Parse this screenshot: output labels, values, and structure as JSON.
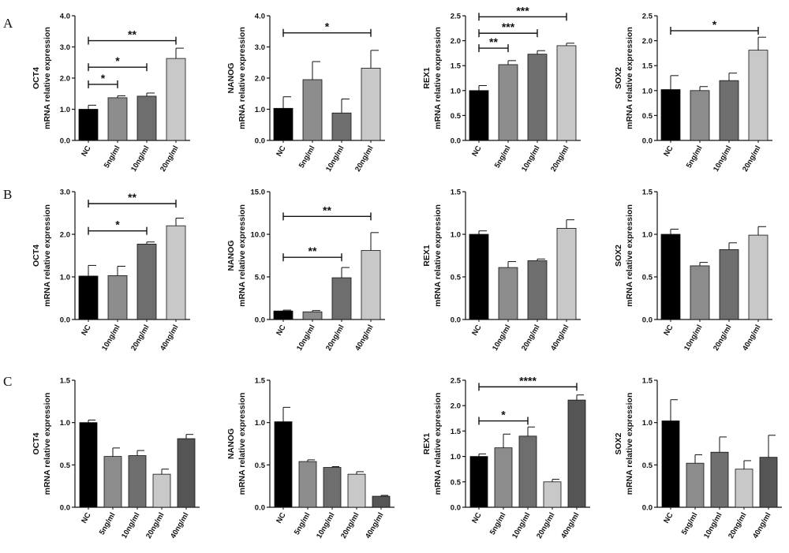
{
  "rows": [
    "A",
    "B",
    "C"
  ],
  "chart_data": [
    {
      "type": "bar",
      "row": "A",
      "title": "",
      "ylabel": [
        "OCT4",
        "mRNA relative expression"
      ],
      "ylim": [
        0,
        4
      ],
      "yticks": [
        "0.0",
        "1.0",
        "2.0",
        "3.0",
        "4.0"
      ],
      "categories": [
        "NC",
        "5ng/ml",
        "10ng/ml",
        "20ng/ml"
      ],
      "values": [
        1.0,
        1.37,
        1.42,
        2.63
      ],
      "errors": [
        0.13,
        0.06,
        0.1,
        0.33
      ],
      "colors": [
        "#000000",
        "#8c8c8c",
        "#6e6e6e",
        "#c8c8c8"
      ],
      "significance": [
        {
          "from": 0,
          "to": 1,
          "y": 1.8,
          "label": "*"
        },
        {
          "from": 0,
          "to": 2,
          "y": 2.35,
          "label": "*"
        },
        {
          "from": 0,
          "to": 3,
          "y": 3.2,
          "label": "**"
        }
      ]
    },
    {
      "type": "bar",
      "row": "A",
      "title": "",
      "ylabel": [
        "NANOG",
        "mRNA relative expression"
      ],
      "ylim": [
        0,
        4
      ],
      "yticks": [
        "0.0",
        "1.0",
        "2.0",
        "3.0",
        "4.0"
      ],
      "categories": [
        "NC",
        "5ng/ml",
        "10ng/ml",
        "20ng/ml"
      ],
      "values": [
        1.03,
        1.95,
        0.88,
        2.32
      ],
      "errors": [
        0.37,
        0.58,
        0.45,
        0.57
      ],
      "colors": [
        "#000000",
        "#8c8c8c",
        "#6e6e6e",
        "#c8c8c8"
      ],
      "significance": [
        {
          "from": 0,
          "to": 3,
          "y": 3.45,
          "label": "*"
        }
      ]
    },
    {
      "type": "bar",
      "row": "A",
      "title": "",
      "ylabel": [
        "REX1",
        "mRNA relative expression"
      ],
      "ylim": [
        0,
        2.5
      ],
      "yticks": [
        "0.0",
        "0.5",
        "1.0",
        "1.5",
        "2.0",
        "2.5"
      ],
      "categories": [
        "NC",
        "5ng/ml",
        "10ng/ml",
        "20ng/ml"
      ],
      "values": [
        1.0,
        1.52,
        1.73,
        1.9
      ],
      "errors": [
        0.1,
        0.08,
        0.07,
        0.05
      ],
      "colors": [
        "#000000",
        "#8c8c8c",
        "#6e6e6e",
        "#c8c8c8"
      ],
      "significance": [
        {
          "from": 0,
          "to": 1,
          "y": 1.85,
          "label": "**"
        },
        {
          "from": 0,
          "to": 2,
          "y": 2.15,
          "label": "***"
        },
        {
          "from": 0,
          "to": 3,
          "y": 2.48,
          "label": "***"
        }
      ]
    },
    {
      "type": "bar",
      "row": "A",
      "title": "",
      "ylabel": [
        "SOX2",
        "mRNA relative expression"
      ],
      "ylim": [
        0,
        2.5
      ],
      "yticks": [
        "0.0",
        "0.5",
        "1.0",
        "1.5",
        "2.0",
        "2.5"
      ],
      "categories": [
        "NC",
        "5ng/ml",
        "10ng/ml",
        "20ng/ml"
      ],
      "values": [
        1.02,
        1.0,
        1.2,
        1.81
      ],
      "errors": [
        0.28,
        0.08,
        0.15,
        0.26
      ],
      "colors": [
        "#000000",
        "#8c8c8c",
        "#6e6e6e",
        "#c8c8c8"
      ],
      "significance": [
        {
          "from": 0,
          "to": 3,
          "y": 2.2,
          "label": "*"
        }
      ]
    },
    {
      "type": "bar",
      "row": "B",
      "title": "",
      "ylabel": [
        "OCT4",
        "mRNA relative expression"
      ],
      "ylim": [
        0,
        3
      ],
      "yticks": [
        "0.0",
        "1.0",
        "2.0",
        "3.0"
      ],
      "categories": [
        "NC",
        "10ng/ml",
        "20ng/ml",
        "40ng/ml"
      ],
      "values": [
        1.02,
        1.03,
        1.77,
        2.2
      ],
      "errors": [
        0.25,
        0.22,
        0.05,
        0.18
      ],
      "colors": [
        "#000000",
        "#8c8c8c",
        "#6e6e6e",
        "#c8c8c8"
      ],
      "significance": [
        {
          "from": 0,
          "to": 2,
          "y": 2.08,
          "label": "*"
        },
        {
          "from": 0,
          "to": 3,
          "y": 2.72,
          "label": "**"
        }
      ]
    },
    {
      "type": "bar",
      "row": "B",
      "title": "",
      "ylabel": [
        "NANOG",
        "mRNA relative expression"
      ],
      "ylim": [
        0,
        15
      ],
      "yticks": [
        "0.0",
        "5.0",
        "10.0",
        "15.0"
      ],
      "categories": [
        "NC",
        "10ng/ml",
        "20ng/ml",
        "40ng/ml"
      ],
      "values": [
        1.0,
        0.9,
        4.9,
        8.1
      ],
      "errors": [
        0.1,
        0.15,
        1.2,
        2.1
      ],
      "colors": [
        "#000000",
        "#8c8c8c",
        "#6e6e6e",
        "#c8c8c8"
      ],
      "significance": [
        {
          "from": 0,
          "to": 2,
          "y": 7.3,
          "label": "**"
        },
        {
          "from": 0,
          "to": 3,
          "y": 12.1,
          "label": "**"
        }
      ]
    },
    {
      "type": "bar",
      "row": "B",
      "title": "",
      "ylabel": [
        "REX1",
        "mRNA relative expression"
      ],
      "ylim": [
        0,
        1.5
      ],
      "yticks": [
        "0.0",
        "0.5",
        "1.0",
        "1.5"
      ],
      "categories": [
        "NC",
        "10ng/ml",
        "20ng/ml",
        "40ng/ml"
      ],
      "values": [
        1.0,
        0.61,
        0.69,
        1.07
      ],
      "errors": [
        0.04,
        0.07,
        0.02,
        0.1
      ],
      "colors": [
        "#000000",
        "#8c8c8c",
        "#6e6e6e",
        "#c8c8c8"
      ],
      "significance": []
    },
    {
      "type": "bar",
      "row": "B",
      "title": "",
      "ylabel": [
        "SOX2",
        "mRNA relative expression"
      ],
      "ylim": [
        0,
        1.5
      ],
      "yticks": [
        "0.0",
        "0.5",
        "1.0",
        "1.5"
      ],
      "categories": [
        "NC",
        "10ng/ml",
        "20ng/ml",
        "40ng/ml"
      ],
      "values": [
        1.0,
        0.63,
        0.82,
        0.99
      ],
      "errors": [
        0.06,
        0.04,
        0.08,
        0.1
      ],
      "colors": [
        "#000000",
        "#8c8c8c",
        "#6e6e6e",
        "#c8c8c8"
      ],
      "significance": []
    },
    {
      "type": "bar",
      "row": "C",
      "title": "",
      "ylabel": [
        "OCT4",
        "mRNA relative expression"
      ],
      "ylim": [
        0,
        1.5
      ],
      "yticks": [
        "0.0",
        "0.5",
        "1.0",
        "1.5"
      ],
      "categories": [
        "NC",
        "5ng/ml",
        "10ng/ml",
        "20ng/ml",
        "40ng/ml"
      ],
      "values": [
        1.0,
        0.6,
        0.61,
        0.39,
        0.81
      ],
      "errors": [
        0.03,
        0.1,
        0.06,
        0.06,
        0.05
      ],
      "colors": [
        "#000000",
        "#8c8c8c",
        "#6e6e6e",
        "#c8c8c8",
        "#555555"
      ],
      "significance": []
    },
    {
      "type": "bar",
      "row": "C",
      "title": "",
      "ylabel": [
        "NANOG",
        "mRNA relative expression"
      ],
      "ylim": [
        0,
        1.5
      ],
      "yticks": [
        "0.0",
        "0.5",
        "1.0",
        "1.5"
      ],
      "categories": [
        "NC",
        "5ng/ml",
        "10ng/ml",
        "20ng/ml",
        "40ng/ml"
      ],
      "values": [
        1.01,
        0.54,
        0.47,
        0.39,
        0.13
      ],
      "errors": [
        0.17,
        0.02,
        0.01,
        0.03,
        0.01
      ],
      "colors": [
        "#000000",
        "#8c8c8c",
        "#6e6e6e",
        "#c8c8c8",
        "#555555"
      ],
      "significance": []
    },
    {
      "type": "bar",
      "row": "C",
      "title": "",
      "ylabel": [
        "REX1",
        "mRNA relative expression"
      ],
      "ylim": [
        0,
        2.5
      ],
      "yticks": [
        "0.0",
        "0.5",
        "1.0",
        "1.5",
        "2.0",
        "2.5"
      ],
      "categories": [
        "NC",
        "5ng/ml",
        "10ng/ml",
        "20ng/ml",
        "40ng/ml"
      ],
      "values": [
        1.0,
        1.17,
        1.4,
        0.5,
        2.11
      ],
      "errors": [
        0.05,
        0.27,
        0.18,
        0.05,
        0.1
      ],
      "colors": [
        "#000000",
        "#8c8c8c",
        "#6e6e6e",
        "#c8c8c8",
        "#555555"
      ],
      "significance": [
        {
          "from": 0,
          "to": 2,
          "y": 1.7,
          "label": "*"
        },
        {
          "from": 0,
          "to": 4,
          "y": 2.37,
          "label": "****"
        }
      ]
    },
    {
      "type": "bar",
      "row": "C",
      "title": "",
      "ylabel": [
        "SOX2",
        "mRNA relative expression"
      ],
      "ylim": [
        0,
        1.5
      ],
      "yticks": [
        "0.0",
        "0.5",
        "1.0",
        "1.5"
      ],
      "categories": [
        "NC",
        "5ng/ml",
        "10ng/ml",
        "20ng/ml",
        "40ng/ml"
      ],
      "values": [
        1.02,
        0.52,
        0.65,
        0.45,
        0.59
      ],
      "errors": [
        0.25,
        0.1,
        0.18,
        0.1,
        0.26
      ],
      "colors": [
        "#000000",
        "#8c8c8c",
        "#6e6e6e",
        "#c8c8c8",
        "#555555"
      ],
      "significance": []
    }
  ]
}
